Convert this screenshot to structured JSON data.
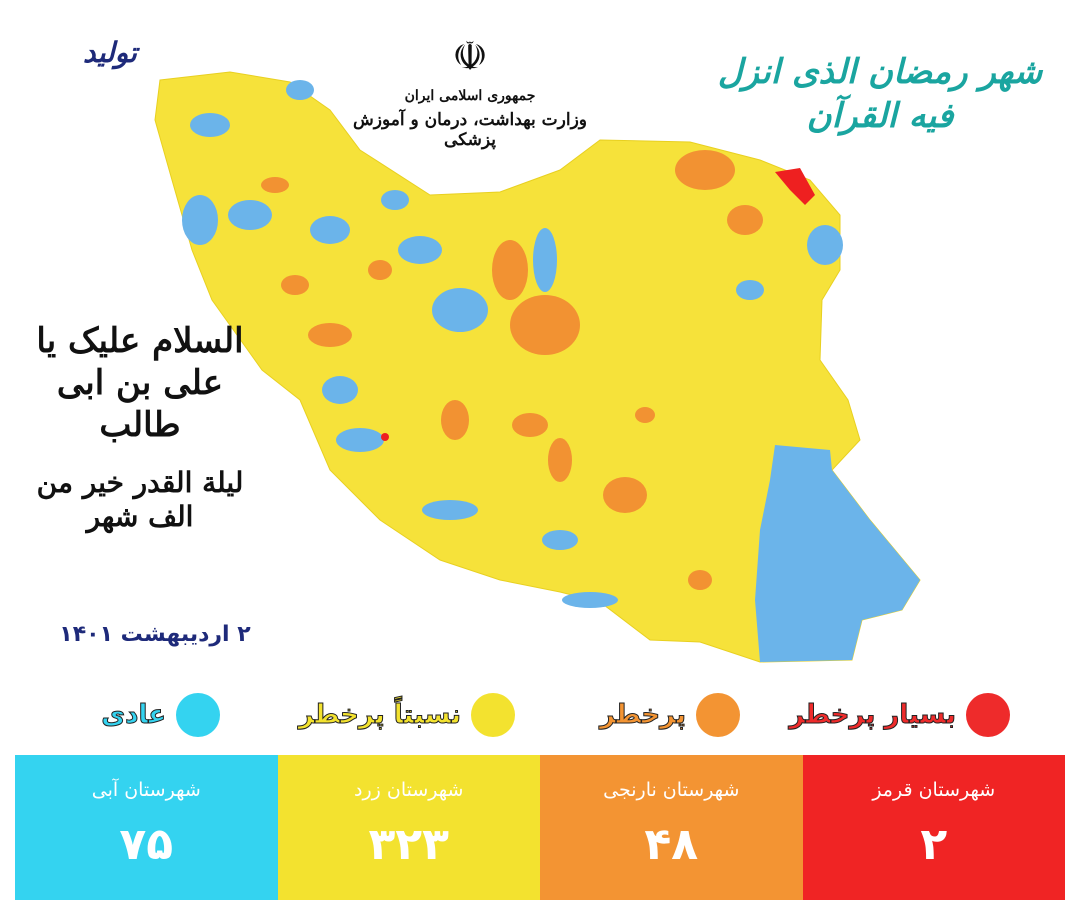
{
  "header": {
    "emblem_icon": "iran-emblem-icon",
    "country": "جمهوری اسلامی ایران",
    "ministry": "وزارت بهداشت، درمان و آموزش پزشکی",
    "logo_text": "تولید",
    "calligraphy_right": "شهر رمضان الذی انزل فیه القرآن",
    "calligraphy_left_1": "السلام علیک یا علی بن ابی طالب",
    "calligraphy_left_2": "لیلة القدر خیر من الف شهر"
  },
  "date": "۲ اردیبهشت ۱۴۰۱",
  "colors": {
    "red": "#f02424",
    "orange": "#f39433",
    "yellow": "#f3e22f",
    "blue": "#34d3f0",
    "map_yellow": "#f6e23a",
    "map_blue": "#6bb4ea",
    "map_orange": "#f29232"
  },
  "legend": [
    {
      "label": "بسیار پرخطر",
      "color": "#ee2b2b"
    },
    {
      "label": "پرخطر",
      "color": "#f39433"
    },
    {
      "label": "نسبتاً پرخطر",
      "color": "#f3e22f"
    },
    {
      "label": "عادی",
      "color": "#34d3f0"
    }
  ],
  "stats": [
    {
      "label": "شهرستان قرمز",
      "value": "۲",
      "color": "#f02424"
    },
    {
      "label": "شهرستان نارنجی",
      "value": "۴۸",
      "color": "#f39433"
    },
    {
      "label": "شهرستان زرد",
      "value": "۳۲۳",
      "color": "#f3e22f"
    },
    {
      "label": "شهرستان آبی",
      "value": "۷۵",
      "color": "#34d3f0"
    }
  ]
}
